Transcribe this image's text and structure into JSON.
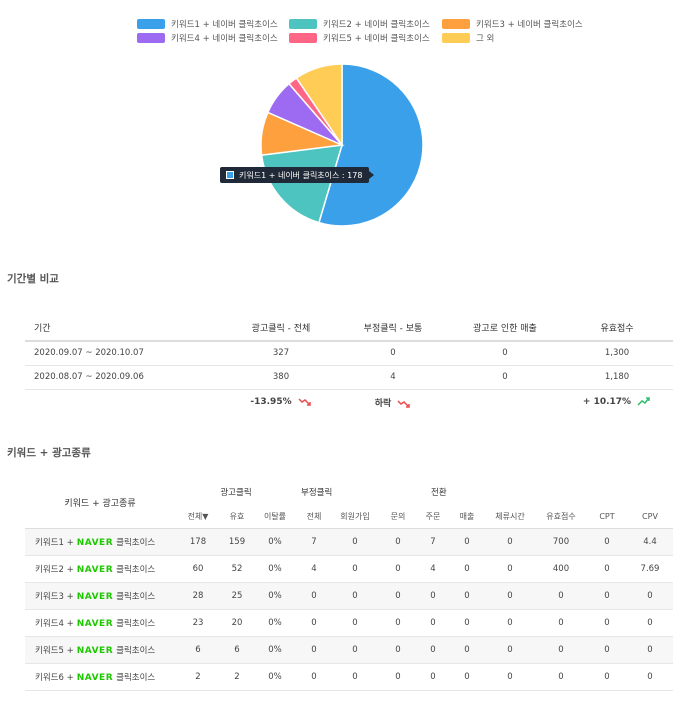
{
  "chart_data": {
    "type": "pie",
    "slices": [
      {
        "label": "키워드1 + 네이버 클릭초이스",
        "value": 178,
        "color": "#3aa0ea"
      },
      {
        "label": "키워드2 + 네이버 클릭초이스",
        "value": 60,
        "color": "#4dc4c0"
      },
      {
        "label": "키워드3 + 네이버 클릭초이스",
        "value": 28,
        "color": "#ffa03e"
      },
      {
        "label": "키워드4 + 네이버 클릭초이스",
        "value": 23,
        "color": "#9d6af2"
      },
      {
        "label": "키워드5 + 네이버 클릭초이스",
        "value": 6,
        "color": "#ff6584"
      },
      {
        "label": "그 외",
        "value": 31,
        "color": "#ffcd56"
      }
    ],
    "legend_position": "top",
    "tooltip": "키워드1 + 네이버 클릭초이스 : 178"
  },
  "period_section": {
    "title": "기간별 비교",
    "headers": [
      "기간",
      "광고클릭 - 전체",
      "부정클릭 - 보통",
      "광고로 인한 매출",
      "유효점수"
    ],
    "rows": [
      [
        "2020.09.07 ~ 2020.10.07",
        "327",
        "0",
        "0",
        "1,300"
      ],
      [
        "2020.08.07 ~ 2020.09.06",
        "380",
        "4",
        "0",
        "1,180"
      ]
    ],
    "change": {
      "clicks": "-13.95%",
      "fraud": "하락",
      "score": "+ 10.17%"
    }
  },
  "keyword_section": {
    "title": "키워드 + 광고종류",
    "header_keyword": "키워드 + 광고종류",
    "group_ad_click": "광고클릭",
    "group_fraud": "부정클릭",
    "group_conversion": "전환",
    "sub_headers": [
      "전체▼",
      "유효",
      "이탈률",
      "전체",
      "회원가입",
      "문의",
      "주문",
      "매출",
      "체류시간",
      "유효점수",
      "CPT",
      "CPV"
    ],
    "naver_label": "NAVER",
    "product_label": "클릭초이스",
    "rows": [
      {
        "keyword": "키워드1 +",
        "values": [
          "178",
          "159",
          "0%",
          "7",
          "0",
          "0",
          "7",
          "0",
          "0",
          "700",
          "0",
          "4.4"
        ]
      },
      {
        "keyword": "키워드2 +",
        "values": [
          "60",
          "52",
          "0%",
          "4",
          "0",
          "0",
          "4",
          "0",
          "0",
          "400",
          "0",
          "7.69"
        ]
      },
      {
        "keyword": "키워드3 +",
        "values": [
          "28",
          "25",
          "0%",
          "0",
          "0",
          "0",
          "0",
          "0",
          "0",
          "0",
          "0",
          "0"
        ]
      },
      {
        "keyword": "키워드4 +",
        "values": [
          "23",
          "20",
          "0%",
          "0",
          "0",
          "0",
          "0",
          "0",
          "0",
          "0",
          "0",
          "0"
        ]
      },
      {
        "keyword": "키워드5 +",
        "values": [
          "6",
          "6",
          "0%",
          "0",
          "0",
          "0",
          "0",
          "0",
          "0",
          "0",
          "0",
          "0"
        ]
      },
      {
        "keyword": "키워드6 +",
        "values": [
          "2",
          "2",
          "0%",
          "0",
          "0",
          "0",
          "0",
          "0",
          "0",
          "0",
          "0",
          "0"
        ]
      }
    ]
  }
}
